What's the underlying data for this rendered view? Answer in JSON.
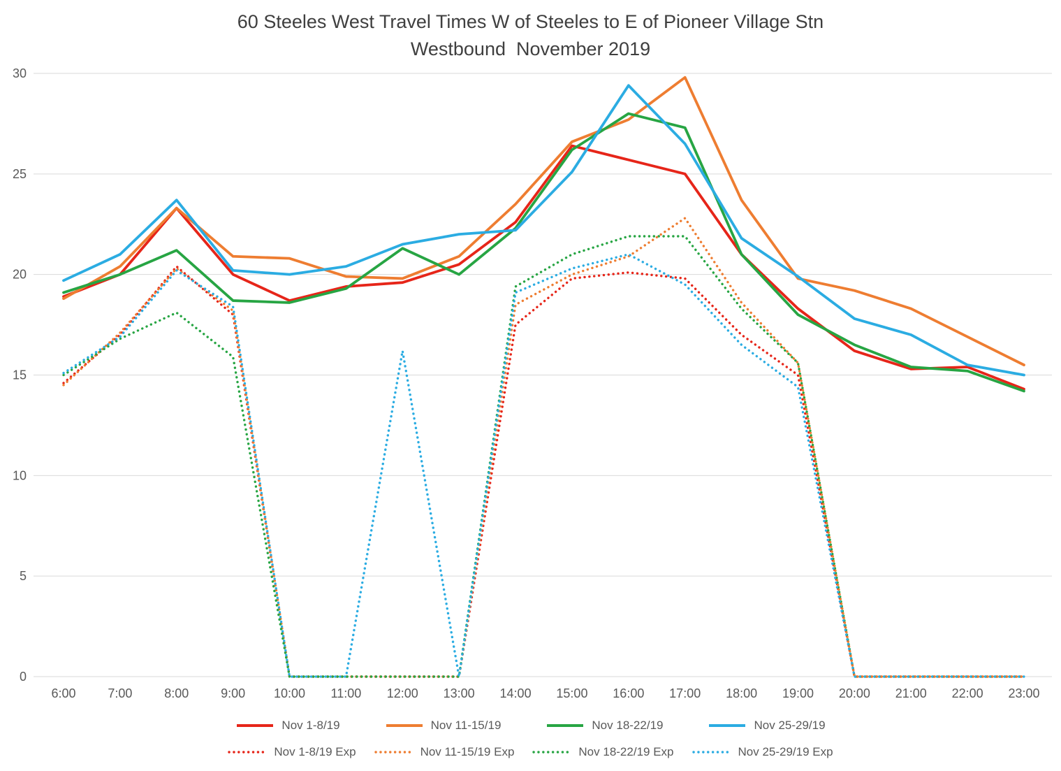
{
  "title": {
    "line1": "60 Steeles West Travel Times W of Steeles to E of Pioneer Village Stn",
    "line2": "Westbound  November 2019"
  },
  "chart_data": {
    "type": "line",
    "title": "60 Steeles West Travel Times W of Steeles to E of Pioneer Village Stn Westbound November 2019",
    "xlabel": "",
    "ylabel": "",
    "ylim": [
      0,
      30
    ],
    "yticks": [
      0,
      5,
      10,
      15,
      20,
      25,
      30
    ],
    "grid": "horizontal",
    "legend_position": "bottom",
    "x": [
      "6:00",
      "7:00",
      "8:00",
      "9:00",
      "10:00",
      "11:00",
      "12:00",
      "13:00",
      "14:00",
      "15:00",
      "16:00",
      "17:00",
      "18:00",
      "19:00",
      "20:00",
      "21:00",
      "22:00",
      "23:00"
    ],
    "series": [
      {
        "name": "Nov 1-8/19",
        "color": "#e62519",
        "style": "solid",
        "values": [
          18.9,
          20.0,
          23.3,
          20.0,
          18.7,
          19.4,
          19.6,
          20.5,
          22.6,
          26.4,
          25.7,
          25.0,
          21.0,
          18.3,
          16.2,
          15.3,
          15.4,
          14.3
        ]
      },
      {
        "name": "Nov 11-15/19",
        "color": "#ee7d31",
        "style": "solid",
        "values": [
          18.8,
          20.4,
          23.3,
          20.9,
          20.8,
          19.9,
          19.8,
          20.9,
          23.5,
          26.6,
          27.7,
          29.8,
          23.7,
          19.8,
          19.2,
          18.3,
          16.9,
          15.5
        ]
      },
      {
        "name": "Nov 18-22/19",
        "color": "#27a543",
        "style": "solid",
        "values": [
          19.1,
          20.0,
          21.2,
          18.7,
          18.6,
          19.3,
          21.3,
          20.0,
          22.3,
          26.2,
          28.0,
          27.3,
          21.0,
          18.0,
          16.5,
          15.4,
          15.2,
          14.2
        ]
      },
      {
        "name": "Nov 25-29/19",
        "color": "#2bace2",
        "style": "solid",
        "values": [
          19.7,
          21.0,
          23.7,
          20.2,
          20.0,
          20.4,
          21.5,
          22.0,
          22.2,
          25.1,
          29.4,
          26.5,
          21.8,
          19.9,
          17.8,
          17.0,
          15.5,
          15.0
        ]
      },
      {
        "name": "Nov 1-8/19 Exp",
        "color": "#e62519",
        "style": "dotted",
        "values": [
          14.6,
          17.0,
          20.4,
          18.0,
          0,
          0,
          0,
          0,
          17.5,
          19.8,
          20.1,
          19.8,
          17.0,
          15.0,
          0,
          0,
          0,
          0
        ]
      },
      {
        "name": "Nov 11-15/19 Exp",
        "color": "#ee7d31",
        "style": "dotted",
        "values": [
          14.5,
          17.1,
          20.3,
          18.2,
          0,
          0,
          0,
          0,
          18.5,
          20.0,
          20.9,
          22.8,
          18.6,
          15.6,
          0,
          0,
          0,
          0
        ]
      },
      {
        "name": "Nov 18-22/19 Exp",
        "color": "#27a543",
        "style": "dotted",
        "values": [
          15.0,
          16.8,
          18.1,
          15.9,
          0,
          0,
          0,
          0,
          19.4,
          21.0,
          21.9,
          21.9,
          18.3,
          15.6,
          0,
          0,
          0,
          0
        ]
      },
      {
        "name": "Nov 25-29/19 Exp",
        "color": "#2bace2",
        "style": "dotted",
        "values": [
          15.1,
          16.9,
          20.2,
          18.4,
          0,
          0,
          16.2,
          0,
          19.1,
          20.3,
          21.0,
          19.5,
          16.5,
          14.4,
          0,
          0,
          0,
          0
        ]
      }
    ]
  }
}
